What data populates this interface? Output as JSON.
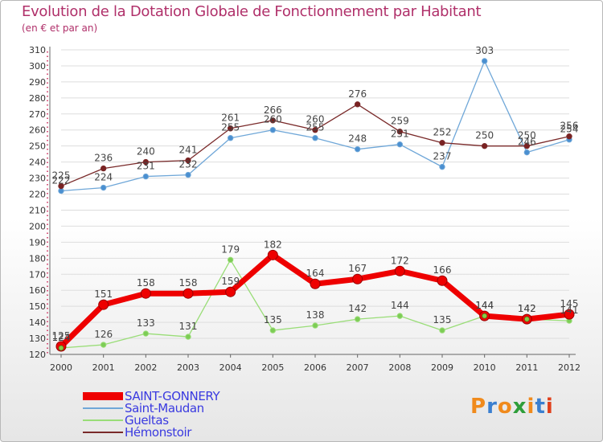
{
  "title": "Evolution de la Dotation Globale de Fonctionnement par Habitant",
  "subtitle": "(en € et par an)",
  "logo_text": "Proxiti",
  "chart_data": {
    "type": "line",
    "title": "Evolution de la Dotation Globale de Fonctionnement par Habitant",
    "subtitle": "(en € et par an)",
    "categories": [
      "2000",
      "2001",
      "2002",
      "2003",
      "2004",
      "2005",
      "2006",
      "2007",
      "2008",
      "2009",
      "2010",
      "2011",
      "2012"
    ],
    "ylim": [
      120,
      310
    ],
    "yticks": [
      120,
      130,
      140,
      150,
      160,
      170,
      180,
      190,
      200,
      210,
      220,
      230,
      240,
      250,
      260,
      270,
      280,
      290,
      300,
      310
    ],
    "legend_position": "bottom-left",
    "series": [
      {
        "name": "SAINT-GONNERY",
        "color": "#ee0000",
        "values": [
          125,
          151,
          158,
          158,
          159,
          182,
          164,
          167,
          172,
          166,
          144,
          142,
          145
        ]
      },
      {
        "name": "Saint-Maudan",
        "color": "#6fa7d8",
        "values": [
          222,
          224,
          231,
          232,
          255,
          260,
          255,
          248,
          251,
          237,
          303,
          246,
          254
        ]
      },
      {
        "name": "Gueltas",
        "color": "#99dd77",
        "values": [
          124,
          126,
          133,
          131,
          179,
          135,
          138,
          142,
          144,
          135,
          144,
          142,
          141
        ]
      },
      {
        "name": "Hémonstoir",
        "color": "#7a2a2a",
        "values": [
          225,
          236,
          240,
          241,
          261,
          266,
          260,
          276,
          259,
          252,
          250,
          250,
          256
        ]
      }
    ]
  }
}
